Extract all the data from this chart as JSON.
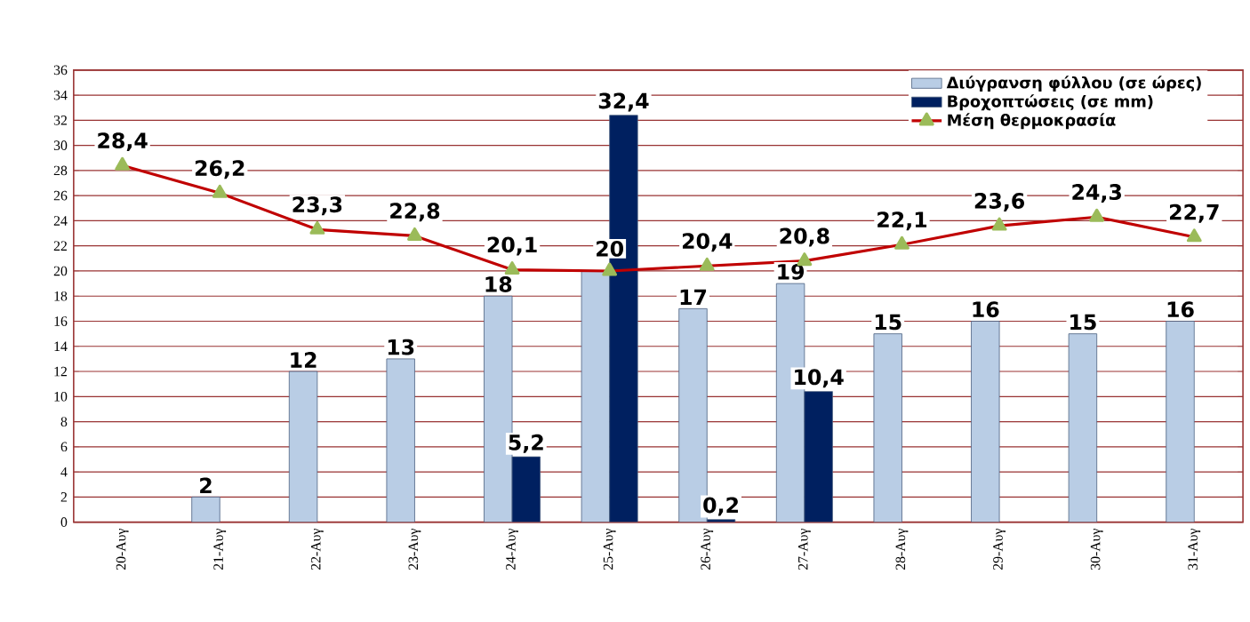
{
  "chart_data": {
    "type": "bar",
    "categories": [
      "20-Αυγ",
      "21-Αυγ",
      "22-Αυγ",
      "23-Αυγ",
      "24-Αυγ",
      "25-Αυγ",
      "26-Αυγ",
      "27-Αυγ",
      "28-Αυγ",
      "29-Αυγ",
      "30-Αυγ",
      "31-Αυγ"
    ],
    "series": [
      {
        "name": "Διύγρανση φύλλου (σε ώρες)",
        "color": "#b9cde5",
        "values": [
          null,
          2,
          12,
          13,
          18,
          20,
          17,
          19,
          15,
          16,
          15,
          16
        ],
        "value_labels": [
          null,
          "2",
          "12",
          "13",
          "18",
          null,
          "17",
          "19",
          "15",
          "16",
          "15",
          "16"
        ]
      },
      {
        "name": "Βροχοπτώσεις (σε mm)",
        "color": "#002060",
        "values": [
          null,
          null,
          null,
          null,
          5.2,
          32.4,
          0.2,
          10.4,
          null,
          null,
          null,
          null
        ],
        "value_labels": [
          null,
          null,
          null,
          null,
          "5,2",
          "32,4",
          "0,2",
          "10,4",
          null,
          null,
          null,
          null
        ]
      },
      {
        "name": "Μέση θερμοκρασία",
        "type": "line",
        "color": "#c00000",
        "values": [
          28.4,
          26.2,
          23.3,
          22.8,
          20.1,
          20,
          20.4,
          20.8,
          22.1,
          23.6,
          24.3,
          22.7
        ],
        "value_labels": [
          "28,4",
          "26,2",
          "23,3",
          "22,8",
          "20,1",
          "20",
          "20,4",
          "20,8",
          "22,1",
          "23,6",
          "24,3",
          "22,7"
        ]
      }
    ],
    "ylim": [
      0,
      36
    ],
    "yticks": [
      0,
      2,
      4,
      6,
      8,
      10,
      12,
      14,
      16,
      18,
      20,
      22,
      24,
      26,
      28,
      30,
      32,
      34,
      36
    ],
    "grid": "y",
    "legend": "top right",
    "marker": "triangle",
    "line_style": "solid"
  }
}
